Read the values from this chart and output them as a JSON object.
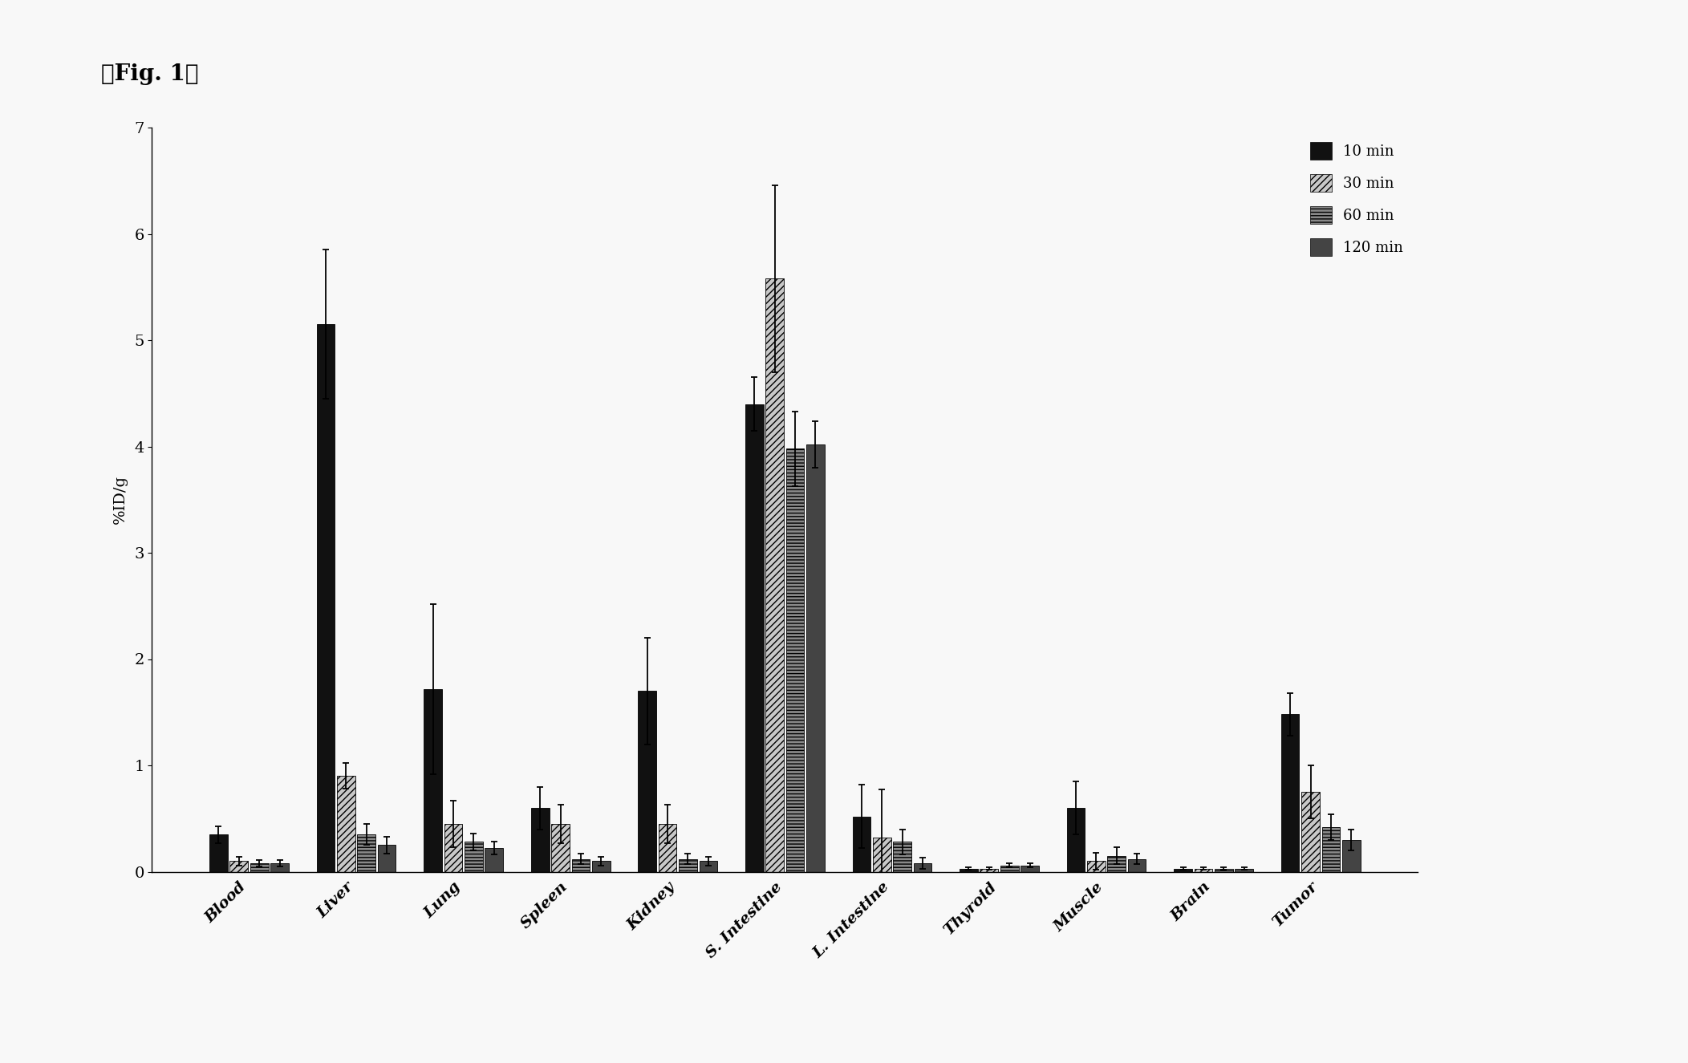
{
  "categories": [
    "Blood",
    "Liver",
    "Lung",
    "Spleen",
    "Kidney",
    "S. Intestine",
    "L. Intestine",
    "Thyroid",
    "Muscle",
    "Brain",
    "Tumor"
  ],
  "series_labels": [
    "10 min",
    "30 min",
    "60 min",
    "120 min"
  ],
  "values": {
    "10 min": [
      0.35,
      5.15,
      1.72,
      0.6,
      1.7,
      4.4,
      0.52,
      0.03,
      0.6,
      0.03,
      1.48
    ],
    "30 min": [
      0.1,
      0.9,
      0.45,
      0.45,
      0.45,
      5.58,
      0.32,
      0.03,
      0.1,
      0.03,
      0.75
    ],
    "60 min": [
      0.08,
      0.35,
      0.28,
      0.12,
      0.12,
      3.98,
      0.28,
      0.06,
      0.15,
      0.03,
      0.42
    ],
    "120 min": [
      0.08,
      0.25,
      0.22,
      0.1,
      0.1,
      4.02,
      0.08,
      0.06,
      0.12,
      0.03,
      0.3
    ]
  },
  "errors": {
    "10 min": [
      0.08,
      0.7,
      0.8,
      0.2,
      0.5,
      0.25,
      0.3,
      0.01,
      0.25,
      0.01,
      0.2
    ],
    "30 min": [
      0.04,
      0.12,
      0.22,
      0.18,
      0.18,
      0.88,
      0.45,
      0.01,
      0.08,
      0.01,
      0.25
    ],
    "60 min": [
      0.03,
      0.1,
      0.08,
      0.05,
      0.05,
      0.35,
      0.12,
      0.02,
      0.08,
      0.01,
      0.12
    ],
    "120 min": [
      0.03,
      0.08,
      0.06,
      0.04,
      0.04,
      0.22,
      0.05,
      0.02,
      0.05,
      0.01,
      0.1
    ]
  },
  "bar_colors": [
    "#111111",
    "#c8c8c8",
    "#888888",
    "#444444"
  ],
  "hatches": [
    null,
    "////",
    "----",
    null
  ],
  "ylabel": "%ID/g",
  "ylim": [
    0,
    7
  ],
  "yticks": [
    0,
    1,
    2,
    3,
    4,
    5,
    6,
    7
  ],
  "figure_label": "『Fig. 1』",
  "background_color": "#f8f8f8",
  "legend_fontsize": 13,
  "axis_fontsize": 14,
  "tick_fontsize": 14
}
